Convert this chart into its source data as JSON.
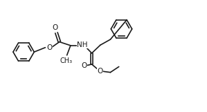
{
  "bg_color": "#ffffff",
  "line_color": "#1a1a1a",
  "line_width": 1.2,
  "font_size": 7.5,
  "figsize": [
    2.99,
    1.62
  ],
  "dpi": 100,
  "xlim": [
    0,
    10.0
  ],
  "ylim": [
    -1.5,
    4.0
  ]
}
